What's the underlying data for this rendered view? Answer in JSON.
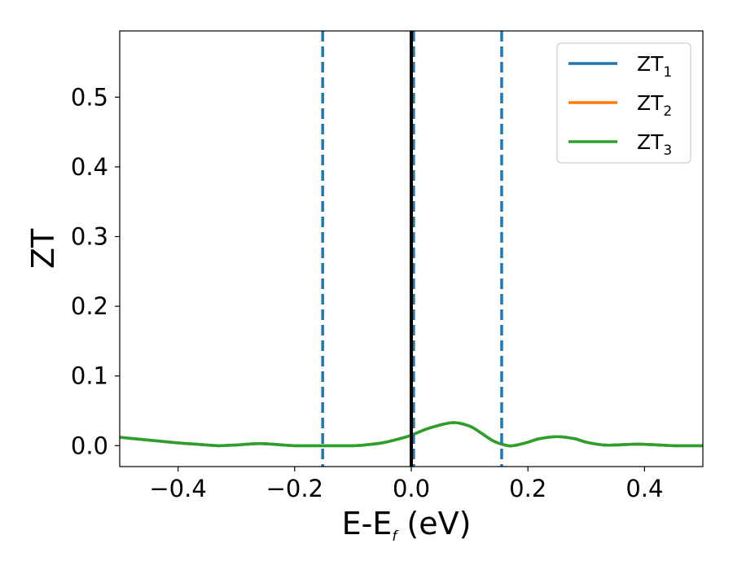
{
  "chart_data": {
    "type": "line",
    "xlabel": {
      "main": "E-E",
      "sub": "f",
      "tail": " (eV)"
    },
    "ylabel": "ZT",
    "xlim": [
      -0.5,
      0.5
    ],
    "ylim": [
      -0.03,
      0.595
    ],
    "xticks": [
      -0.4,
      -0.2,
      0.0,
      0.2,
      0.4
    ],
    "xtick_labels": [
      "−0.4",
      "−0.2",
      "0.0",
      "0.2",
      "0.4"
    ],
    "yticks": [
      0.0,
      0.1,
      0.2,
      0.3,
      0.4,
      0.5
    ],
    "ytick_labels": [
      "0.0",
      "0.1",
      "0.2",
      "0.3",
      "0.4",
      "0.5"
    ],
    "grid": false,
    "legend_position": "top-right",
    "vlines": [
      {
        "x": -0.152,
        "style": "dashed",
        "color": "#1f77b4"
      },
      {
        "x": 0.004,
        "style": "dashed",
        "color": "#1f77b4"
      },
      {
        "x": 0.155,
        "style": "dashed",
        "color": "#1f77b4"
      },
      {
        "x": 0.0,
        "style": "solid",
        "color": "#000000"
      }
    ],
    "x": [
      -0.5,
      -0.45,
      -0.4,
      -0.35,
      -0.33,
      -0.3,
      -0.26,
      -0.22,
      -0.2,
      -0.15,
      -0.1,
      -0.08,
      -0.05,
      -0.02,
      0.0,
      0.03,
      0.07,
      0.1,
      0.12,
      0.14,
      0.16,
      0.175,
      0.2,
      0.22,
      0.25,
      0.28,
      0.3,
      0.33,
      0.35,
      0.38,
      0.4,
      0.45,
      0.5
    ],
    "series": [
      {
        "name": "ZT",
        "sub": "1",
        "color": "#1f77b4",
        "values": [
          0.012,
          0.008,
          0.004,
          0.001,
          0.0,
          0.001,
          0.003,
          0.001,
          0.0,
          0.0,
          0.0,
          0.001,
          0.004,
          0.01,
          0.015,
          0.025,
          0.033,
          0.028,
          0.018,
          0.007,
          0.001,
          0.0,
          0.005,
          0.01,
          0.013,
          0.01,
          0.005,
          0.001,
          0.001,
          0.002,
          0.002,
          0.0,
          0.0
        ]
      },
      {
        "name": "ZT",
        "sub": "2",
        "color": "#ff7f0e",
        "values": [
          0.012,
          0.008,
          0.004,
          0.001,
          0.0,
          0.001,
          0.003,
          0.001,
          0.0,
          0.0,
          0.0,
          0.001,
          0.004,
          0.01,
          0.015,
          0.025,
          0.033,
          0.028,
          0.018,
          0.007,
          0.001,
          0.0,
          0.005,
          0.01,
          0.013,
          0.01,
          0.005,
          0.001,
          0.001,
          0.002,
          0.002,
          0.0,
          0.0
        ]
      },
      {
        "name": "ZT",
        "sub": "3",
        "color": "#2ca02c",
        "values": [
          0.012,
          0.008,
          0.004,
          0.001,
          0.0,
          0.001,
          0.003,
          0.001,
          0.0,
          0.0,
          0.0,
          0.001,
          0.004,
          0.01,
          0.015,
          0.025,
          0.033,
          0.028,
          0.018,
          0.007,
          0.001,
          0.0,
          0.005,
          0.01,
          0.013,
          0.01,
          0.005,
          0.001,
          0.001,
          0.002,
          0.002,
          0.0,
          0.0
        ]
      }
    ]
  }
}
